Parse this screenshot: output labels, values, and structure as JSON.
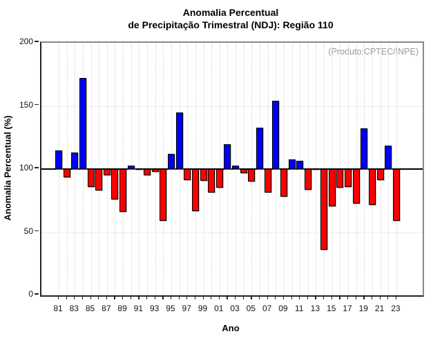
{
  "title": {
    "line1": "Anomalia Percentual",
    "line2": "de Precipitação Trimestral (NDJ): Região 110"
  },
  "annotation": "(Produto:CPTEC/INPE)",
  "chart_data": {
    "type": "bar",
    "title": "Anomalia Percentual de Precipitação Trimestral (NDJ): Região 110",
    "xlabel": "Ano",
    "ylabel": "Anomalia Percentual (%)",
    "ylim": [
      0,
      200
    ],
    "yticks": [
      0,
      50,
      100,
      150,
      200
    ],
    "baseline": 100,
    "grid": "dotted gridlines: horizontal at 50 and 150, vertical at every year; solid black line at 100",
    "legend_position": "none",
    "colors": {
      "above_baseline": "#0000f5",
      "below_baseline": "#fb0000",
      "near_baseline": "#000000"
    },
    "categories": [
      1981,
      1982,
      1983,
      1984,
      1985,
      1986,
      1987,
      1988,
      1989,
      1990,
      1991,
      1992,
      1993,
      1994,
      1995,
      1996,
      1997,
      1998,
      1999,
      2000,
      2001,
      2002,
      2003,
      2004,
      2005,
      2006,
      2007,
      2008,
      2009,
      2010,
      2011,
      2012,
      2013,
      2014,
      2015,
      2016,
      2017,
      2018,
      2019,
      2020,
      2021,
      2022,
      2023
    ],
    "values": [
      115,
      93.5,
      113,
      172,
      86,
      83,
      95,
      76,
      66,
      103,
      100.5,
      95,
      98,
      59,
      112,
      145,
      91,
      66.5,
      90.5,
      81.5,
      85,
      119.5,
      103,
      96.5,
      90,
      133,
      81.5,
      154,
      78,
      107.5,
      106.5,
      83.5,
      100,
      36,
      70.5,
      85.5,
      86,
      72.5,
      132,
      71.5,
      91.5,
      118.5,
      59
    ],
    "x_tick_labels": [
      "81",
      "83",
      "85",
      "87",
      "89",
      "91",
      "93",
      "95",
      "97",
      "99",
      "01",
      "03",
      "05",
      "07",
      "09",
      "11",
      "13",
      "15",
      "17",
      "19",
      "21",
      "23"
    ]
  }
}
